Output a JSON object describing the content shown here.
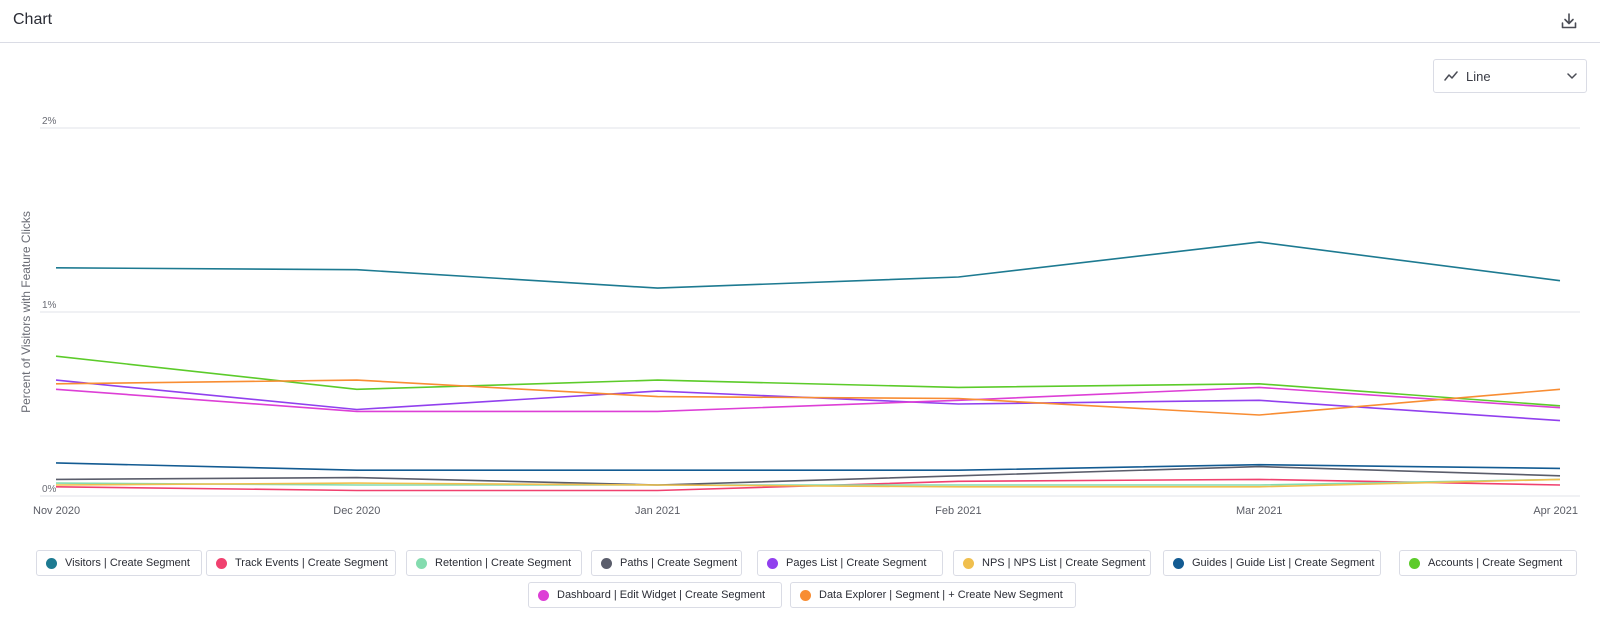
{
  "header": {
    "title": "Chart",
    "download_icon": "download-icon"
  },
  "chart_type_select": {
    "value": "Line",
    "icon": "trend-line-icon",
    "chevron": "chevron-down-icon"
  },
  "chart_data": {
    "type": "line",
    "ylabel": "Percent of Visitors with Feature Clicks",
    "xlabel": "",
    "x": [
      "Nov 2020",
      "Dec 2020",
      "Jan 2021",
      "Feb 2021",
      "Mar 2021",
      "Apr 2021"
    ],
    "y_ticks": [
      "0%",
      "1%",
      "2%"
    ],
    "ylim": [
      0,
      2
    ],
    "grid": true,
    "legend": "bottom",
    "series": [
      {
        "name": "Visitors | Create Segment",
        "color": "#1d7a91",
        "values": [
          1.24,
          1.23,
          1.13,
          1.19,
          1.38,
          1.17
        ]
      },
      {
        "name": "Track Events | Create Segment",
        "color": "#f0416f",
        "values": [
          0.05,
          0.03,
          0.03,
          0.08,
          0.09,
          0.06
        ]
      },
      {
        "name": "Retention | Create Segment",
        "color": "#84dcaf",
        "values": [
          0.07,
          0.06,
          0.06,
          0.06,
          0.06,
          0.09
        ]
      },
      {
        "name": "Paths | Create Segment",
        "color": "#5a5d6b",
        "values": [
          0.09,
          0.1,
          0.06,
          0.11,
          0.16,
          0.11
        ]
      },
      {
        "name": "Pages List | Create Segment",
        "color": "#9140ee",
        "values": [
          0.63,
          0.47,
          0.57,
          0.5,
          0.52,
          0.41
        ]
      },
      {
        "name": "NPS | NPS List | Create Segment",
        "color": "#f0bf4e",
        "values": [
          0.06,
          0.07,
          0.06,
          0.05,
          0.05,
          0.09
        ]
      },
      {
        "name": "Guides | Guide List | Create Segment",
        "color": "#135b92",
        "values": [
          0.18,
          0.14,
          0.14,
          0.14,
          0.17,
          0.15
        ]
      },
      {
        "name": "Accounts | Create Segment",
        "color": "#5ccb2a",
        "values": [
          0.76,
          0.58,
          0.63,
          0.59,
          0.61,
          0.49
        ]
      },
      {
        "name": "Dashboard | Edit Widget | Create Segment",
        "color": "#dd3fd6",
        "values": [
          0.58,
          0.46,
          0.46,
          0.52,
          0.59,
          0.48
        ]
      },
      {
        "name": "Data Explorer | Segment | + Create New Segment",
        "color": "#f88d33",
        "values": [
          0.61,
          0.63,
          0.54,
          0.53,
          0.44,
          0.58
        ]
      }
    ]
  }
}
